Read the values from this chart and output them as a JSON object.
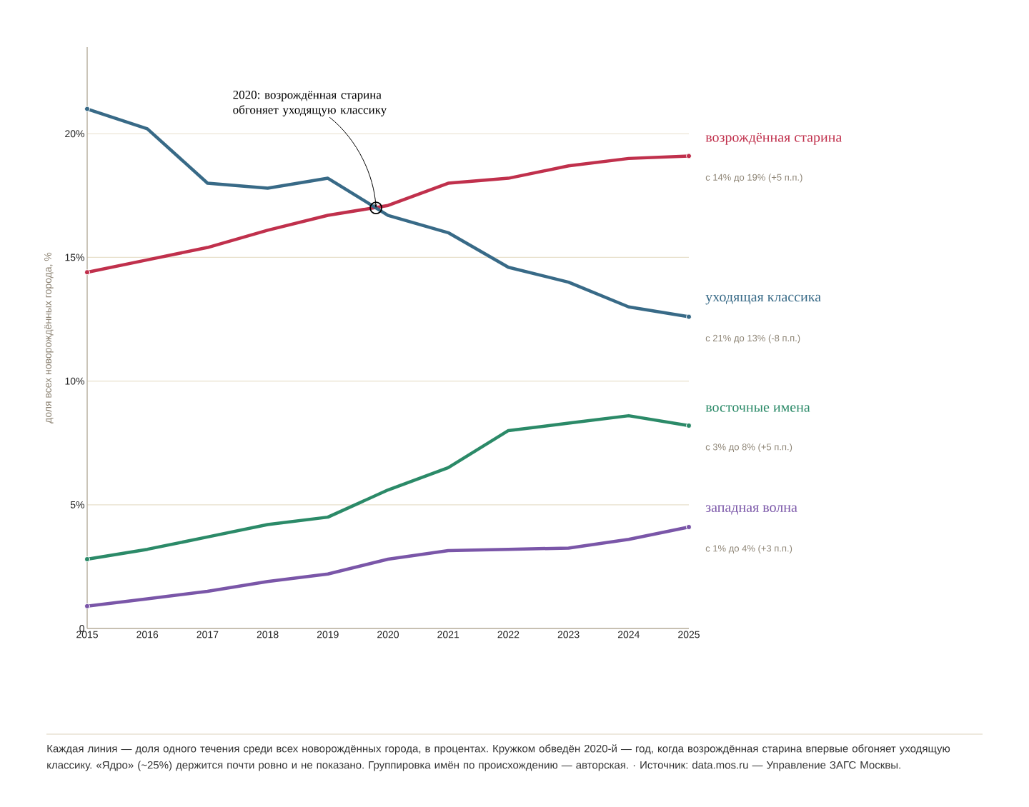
{
  "chart_data": {
    "type": "line",
    "ylabel": "доля всех новорождённых города, %",
    "x": [
      2015,
      2016,
      2017,
      2018,
      2019,
      2020,
      2021,
      2022,
      2023,
      2024,
      2025
    ],
    "xlim": [
      2015,
      2025
    ],
    "xticks": [
      2015,
      2016,
      2017,
      2018,
      2019,
      2020,
      2021,
      2022,
      2023,
      2024,
      2025
    ],
    "ylim": [
      0,
      23.5
    ],
    "yticks": [
      0,
      {
        "value": 5,
        "label": "5%"
      },
      {
        "value": 10,
        "label": "10%"
      },
      {
        "value": 15,
        "label": "15%"
      },
      {
        "value": 20,
        "label": "20%"
      }
    ],
    "grid": "y",
    "line_style": "solid",
    "series": [
      {
        "name": "возрождённая старина",
        "color": "#c0304c",
        "values": [
          14.4,
          14.9,
          15.4,
          16.1,
          16.7,
          17.1,
          18.0,
          18.2,
          18.7,
          19.0,
          19.1
        ]
      },
      {
        "name": "уходящая классика",
        "color": "#386a87",
        "values": [
          21.0,
          20.2,
          18.0,
          17.8,
          18.2,
          16.7,
          16.0,
          14.6,
          14.0,
          13.0,
          12.6
        ]
      },
      {
        "name": "восточные имена",
        "color": "#2b8a68",
        "values": [
          2.8,
          3.2,
          3.7,
          4.2,
          4.5,
          5.6,
          6.5,
          8.0,
          8.3,
          8.6,
          8.2
        ]
      },
      {
        "name": "западная волна",
        "color": "#7a56a8",
        "values": [
          0.9,
          1.2,
          1.5,
          1.9,
          2.2,
          2.8,
          3.15,
          3.2,
          3.25,
          3.6,
          4.1
        ]
      }
    ],
    "annotations": [
      {
        "text": "2020: возрождённая старина обгоняет уходящую классику",
        "x": 2019.8,
        "y": 17.0
      },
      "с 14% до 19%  (+5 п.п.)",
      "с 21% до 13%  (-8 п.п.)",
      "с 3% до 8%  (+5 п.п.)",
      "с 1% до 4%  (+3 п.п.)",
      "Каждая линия — доля одного течения среди всех новорождённых города, в процентах. Кружком обведён 2020-й — год, когда возрождённая старина впервые обгоняет уходящую классику. «Ядро» (~25%) держится почти ровно и не показано. Группировка имён по происхождению — авторская. · Источник: data.mos.ru — Управление ЗАГС Москвы."
    ]
  }
}
